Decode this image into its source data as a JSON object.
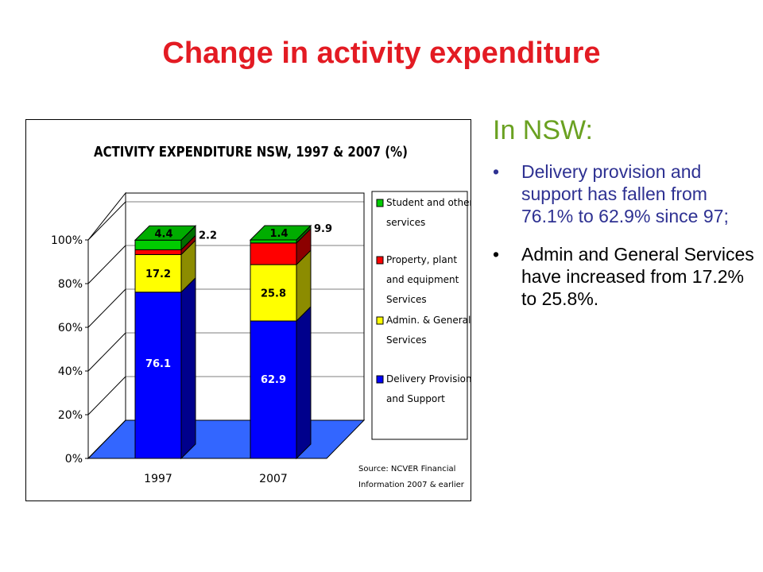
{
  "slide": {
    "title": "Change in activity expenditure"
  },
  "panel": {
    "heading": "In NSW:",
    "bullet_glyph": "•",
    "bullets": [
      "Delivery provision and support has fallen from 76.1% to 62.9% since 97;",
      "Admin and General Services have increased from 17.2% to 25.8%."
    ]
  },
  "colors": {
    "title": "#e31b23",
    "heading": "#6aa121",
    "bullet1": "#2e3192",
    "bullet2": "#000000"
  },
  "chart_data": {
    "type": "bar",
    "stacked": true,
    "three_d": true,
    "title": "ACTIVITY EXPENDITURE NSW, 1997 & 2007 (%)",
    "categories": [
      "1997",
      "2007"
    ],
    "series": [
      {
        "name": "Delivery Provision and Support",
        "values": [
          76.1,
          62.9
        ],
        "color": "#0000ff",
        "label_color": "#ffffff"
      },
      {
        "name": "Admin. & General Services",
        "values": [
          17.2,
          25.8
        ],
        "color": "#ffff00",
        "label_color": "#000000"
      },
      {
        "name": "Property, plant and equipment Services",
        "values": [
          2.2,
          9.9
        ],
        "color": "#ff0000",
        "label_color": "#000000"
      },
      {
        "name": "Student and other services",
        "values": [
          4.4,
          1.4
        ],
        "color": "#00cc00",
        "label_color": "#000000"
      }
    ],
    "legend_lines": [
      [
        "Student and other",
        "services"
      ],
      [
        "Property, plant",
        "and equipment",
        "Services"
      ],
      [
        "Admin. & General",
        "Services"
      ],
      [
        "Delivery Provision",
        "and Support"
      ]
    ],
    "yticks": [
      "0%",
      "20%",
      "40%",
      "60%",
      "80%",
      "100%"
    ],
    "ylim": [
      0,
      100
    ],
    "legend_position": "right",
    "floor_color": "#3366ff",
    "source_lines": [
      "Source: NCVER Financial",
      "Information 2007 & earlier"
    ]
  }
}
